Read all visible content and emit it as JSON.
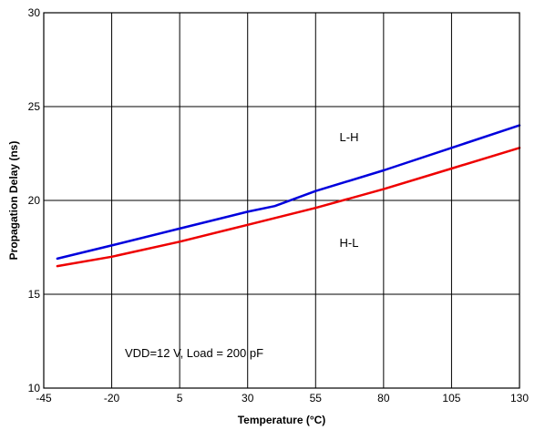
{
  "chart_data": {
    "type": "line",
    "title": "",
    "xlabel": "Temperature (°C)",
    "ylabel": "Propagation Delay (ns)",
    "xlim": [
      -45,
      130
    ],
    "ylim": [
      10,
      30
    ],
    "xticks": [
      -45,
      -20,
      5,
      30,
      55,
      80,
      105,
      130
    ],
    "yticks": [
      10,
      15,
      20,
      25,
      30
    ],
    "grid": true,
    "series": [
      {
        "name": "L-H",
        "color": "#0000dd",
        "x": [
          -40,
          -20,
          5,
          30,
          40,
          55,
          80,
          105,
          130
        ],
        "y": [
          16.9,
          17.6,
          18.5,
          19.4,
          19.7,
          20.5,
          21.6,
          22.8,
          24.0
        ]
      },
      {
        "name": "H-L",
        "color": "#ee0000",
        "x": [
          -40,
          -20,
          5,
          30,
          55,
          80,
          105,
          130
        ],
        "y": [
          16.5,
          17.0,
          17.8,
          18.7,
          19.6,
          20.6,
          21.7,
          22.8
        ]
      }
    ],
    "annotations": {
      "lh_label": "L-H",
      "hl_label": "H-L",
      "conditions": "VDD=12 V, Load = 200 pF"
    }
  }
}
